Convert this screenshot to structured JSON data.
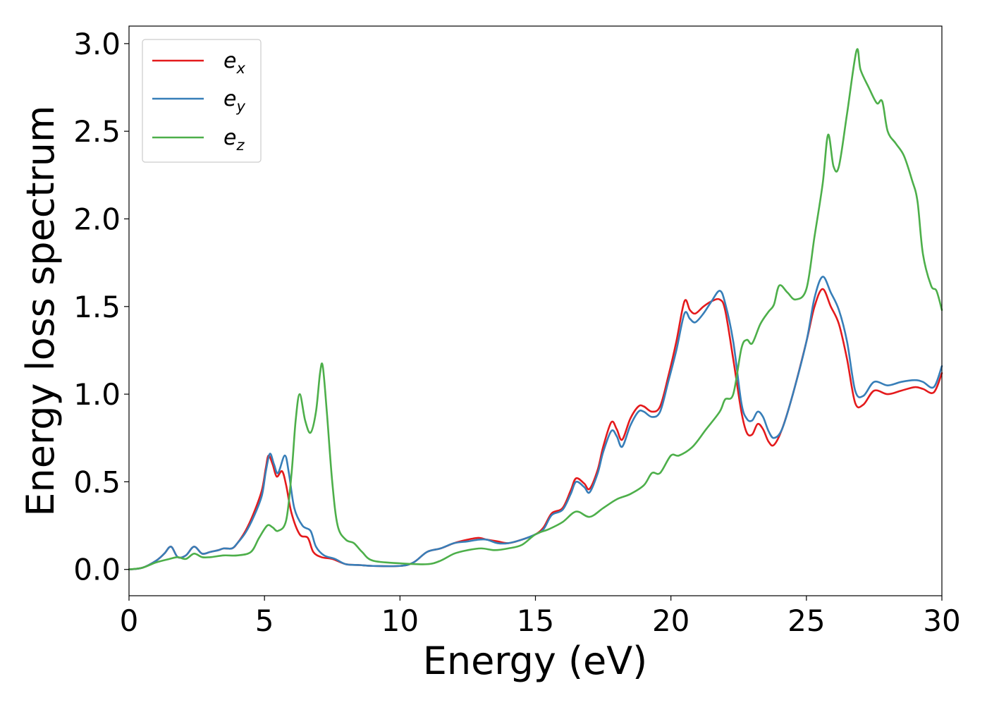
{
  "chart_data": {
    "type": "line",
    "xlabel": "Energy (eV)",
    "ylabel": "Energy loss spectrum",
    "xlim": [
      0,
      30
    ],
    "ylim": [
      -0.15,
      3.1
    ],
    "xticks": [
      0,
      5,
      10,
      15,
      20,
      25,
      30
    ],
    "xtick_labels": [
      "0",
      "5",
      "10",
      "15",
      "20",
      "25",
      "30"
    ],
    "yticks": [
      0.0,
      0.5,
      1.0,
      1.5,
      2.0,
      2.5,
      3.0
    ],
    "ytick_labels": [
      "0.0",
      "0.5",
      "1.0",
      "1.5",
      "2.0",
      "2.5",
      "3.0"
    ],
    "grid": false,
    "legend_position": "top-left",
    "series": [
      {
        "name": "e_x",
        "legend_base": "e",
        "legend_sub": "x",
        "color": "#e41a1c",
        "points": [
          [
            0,
            0
          ],
          [
            0.5,
            0.01
          ],
          [
            1.0,
            0.05
          ],
          [
            1.3,
            0.09
          ],
          [
            1.55,
            0.13
          ],
          [
            1.8,
            0.07
          ],
          [
            2.1,
            0.08
          ],
          [
            2.4,
            0.13
          ],
          [
            2.7,
            0.09
          ],
          [
            3.0,
            0.1
          ],
          [
            3.3,
            0.11
          ],
          [
            3.5,
            0.12
          ],
          [
            3.8,
            0.12
          ],
          [
            4.0,
            0.15
          ],
          [
            4.3,
            0.22
          ],
          [
            4.6,
            0.32
          ],
          [
            4.9,
            0.45
          ],
          [
            5.05,
            0.58
          ],
          [
            5.15,
            0.65
          ],
          [
            5.3,
            0.6
          ],
          [
            5.45,
            0.53
          ],
          [
            5.65,
            0.56
          ],
          [
            5.8,
            0.48
          ],
          [
            6.0,
            0.32
          ],
          [
            6.3,
            0.2
          ],
          [
            6.6,
            0.18
          ],
          [
            6.8,
            0.1
          ],
          [
            7.1,
            0.07
          ],
          [
            7.5,
            0.06
          ],
          [
            8.0,
            0.03
          ],
          [
            8.5,
            0.025
          ],
          [
            9.0,
            0.02
          ],
          [
            10.0,
            0.02
          ],
          [
            10.5,
            0.04
          ],
          [
            11.0,
            0.1
          ],
          [
            11.5,
            0.12
          ],
          [
            12.0,
            0.15
          ],
          [
            12.5,
            0.17
          ],
          [
            12.9,
            0.18
          ],
          [
            13.2,
            0.17
          ],
          [
            13.6,
            0.16
          ],
          [
            14.0,
            0.15
          ],
          [
            14.5,
            0.17
          ],
          [
            15.0,
            0.2
          ],
          [
            15.3,
            0.24
          ],
          [
            15.6,
            0.32
          ],
          [
            16.0,
            0.35
          ],
          [
            16.3,
            0.45
          ],
          [
            16.5,
            0.52
          ],
          [
            16.8,
            0.49
          ],
          [
            17.0,
            0.46
          ],
          [
            17.3,
            0.57
          ],
          [
            17.5,
            0.7
          ],
          [
            17.8,
            0.84
          ],
          [
            18.0,
            0.8
          ],
          [
            18.2,
            0.74
          ],
          [
            18.5,
            0.86
          ],
          [
            18.8,
            0.93
          ],
          [
            19.0,
            0.93
          ],
          [
            19.3,
            0.9
          ],
          [
            19.6,
            0.93
          ],
          [
            19.9,
            1.1
          ],
          [
            20.2,
            1.3
          ],
          [
            20.5,
            1.53
          ],
          [
            20.7,
            1.48
          ],
          [
            20.9,
            1.46
          ],
          [
            21.2,
            1.5
          ],
          [
            21.5,
            1.53
          ],
          [
            21.8,
            1.54
          ],
          [
            22.0,
            1.48
          ],
          [
            22.3,
            1.2
          ],
          [
            22.6,
            0.9
          ],
          [
            22.8,
            0.78
          ],
          [
            23.0,
            0.77
          ],
          [
            23.2,
            0.83
          ],
          [
            23.4,
            0.8
          ],
          [
            23.6,
            0.73
          ],
          [
            23.8,
            0.71
          ],
          [
            24.1,
            0.8
          ],
          [
            24.5,
            1.0
          ],
          [
            25.0,
            1.3
          ],
          [
            25.3,
            1.5
          ],
          [
            25.6,
            1.6
          ],
          [
            25.9,
            1.5
          ],
          [
            26.2,
            1.4
          ],
          [
            26.5,
            1.2
          ],
          [
            26.8,
            0.95
          ],
          [
            27.1,
            0.94
          ],
          [
            27.5,
            1.02
          ],
          [
            28.0,
            1.0
          ],
          [
            28.5,
            1.02
          ],
          [
            29.0,
            1.04
          ],
          [
            29.3,
            1.03
          ],
          [
            29.7,
            1.01
          ],
          [
            30.0,
            1.12
          ]
        ]
      },
      {
        "name": "e_y",
        "legend_base": "e",
        "legend_sub": "y",
        "color": "#377eb8",
        "points": [
          [
            0,
            0
          ],
          [
            0.5,
            0.01
          ],
          [
            1.0,
            0.05
          ],
          [
            1.3,
            0.09
          ],
          [
            1.55,
            0.13
          ],
          [
            1.8,
            0.07
          ],
          [
            2.1,
            0.08
          ],
          [
            2.4,
            0.13
          ],
          [
            2.7,
            0.09
          ],
          [
            3.0,
            0.1
          ],
          [
            3.3,
            0.11
          ],
          [
            3.5,
            0.12
          ],
          [
            3.8,
            0.12
          ],
          [
            4.0,
            0.15
          ],
          [
            4.3,
            0.21
          ],
          [
            4.6,
            0.3
          ],
          [
            4.9,
            0.42
          ],
          [
            5.05,
            0.56
          ],
          [
            5.2,
            0.66
          ],
          [
            5.35,
            0.6
          ],
          [
            5.5,
            0.55
          ],
          [
            5.75,
            0.65
          ],
          [
            5.9,
            0.55
          ],
          [
            6.1,
            0.35
          ],
          [
            6.4,
            0.25
          ],
          [
            6.7,
            0.22
          ],
          [
            6.9,
            0.13
          ],
          [
            7.2,
            0.08
          ],
          [
            7.6,
            0.06
          ],
          [
            8.0,
            0.03
          ],
          [
            8.5,
            0.025
          ],
          [
            9.0,
            0.02
          ],
          [
            10.0,
            0.02
          ],
          [
            10.5,
            0.04
          ],
          [
            11.0,
            0.1
          ],
          [
            11.5,
            0.12
          ],
          [
            12.0,
            0.15
          ],
          [
            12.5,
            0.16
          ],
          [
            12.9,
            0.17
          ],
          [
            13.2,
            0.17
          ],
          [
            13.6,
            0.15
          ],
          [
            14.0,
            0.15
          ],
          [
            14.5,
            0.17
          ],
          [
            15.0,
            0.2
          ],
          [
            15.3,
            0.23
          ],
          [
            15.6,
            0.31
          ],
          [
            16.0,
            0.34
          ],
          [
            16.3,
            0.43
          ],
          [
            16.5,
            0.5
          ],
          [
            16.8,
            0.47
          ],
          [
            17.0,
            0.44
          ],
          [
            17.3,
            0.55
          ],
          [
            17.5,
            0.67
          ],
          [
            17.8,
            0.79
          ],
          [
            18.0,
            0.76
          ],
          [
            18.2,
            0.7
          ],
          [
            18.5,
            0.82
          ],
          [
            18.8,
            0.9
          ],
          [
            19.0,
            0.9
          ],
          [
            19.3,
            0.87
          ],
          [
            19.6,
            0.9
          ],
          [
            19.9,
            1.07
          ],
          [
            20.2,
            1.25
          ],
          [
            20.5,
            1.46
          ],
          [
            20.7,
            1.43
          ],
          [
            20.9,
            1.41
          ],
          [
            21.2,
            1.46
          ],
          [
            21.5,
            1.53
          ],
          [
            21.8,
            1.59
          ],
          [
            22.0,
            1.52
          ],
          [
            22.3,
            1.3
          ],
          [
            22.6,
            0.95
          ],
          [
            22.8,
            0.86
          ],
          [
            23.0,
            0.85
          ],
          [
            23.2,
            0.9
          ],
          [
            23.4,
            0.87
          ],
          [
            23.6,
            0.79
          ],
          [
            23.8,
            0.75
          ],
          [
            24.1,
            0.8
          ],
          [
            24.5,
            1.0
          ],
          [
            25.0,
            1.3
          ],
          [
            25.3,
            1.55
          ],
          [
            25.6,
            1.67
          ],
          [
            25.9,
            1.58
          ],
          [
            26.2,
            1.48
          ],
          [
            26.5,
            1.3
          ],
          [
            26.8,
            1.02
          ],
          [
            27.1,
            0.99
          ],
          [
            27.5,
            1.07
          ],
          [
            28.0,
            1.05
          ],
          [
            28.5,
            1.07
          ],
          [
            29.0,
            1.08
          ],
          [
            29.3,
            1.07
          ],
          [
            29.7,
            1.04
          ],
          [
            30.0,
            1.16
          ]
        ]
      },
      {
        "name": "e_z",
        "legend_base": "e",
        "legend_sub": "z",
        "color": "#4daf4a",
        "points": [
          [
            0,
            0
          ],
          [
            0.5,
            0.01
          ],
          [
            1.0,
            0.04
          ],
          [
            1.5,
            0.06
          ],
          [
            1.8,
            0.07
          ],
          [
            2.1,
            0.06
          ],
          [
            2.4,
            0.09
          ],
          [
            2.7,
            0.07
          ],
          [
            3.0,
            0.07
          ],
          [
            3.5,
            0.08
          ],
          [
            4.0,
            0.08
          ],
          [
            4.5,
            0.1
          ],
          [
            4.8,
            0.18
          ],
          [
            5.1,
            0.25
          ],
          [
            5.3,
            0.24
          ],
          [
            5.5,
            0.22
          ],
          [
            5.8,
            0.28
          ],
          [
            6.0,
            0.55
          ],
          [
            6.15,
            0.85
          ],
          [
            6.3,
            1.0
          ],
          [
            6.5,
            0.85
          ],
          [
            6.7,
            0.78
          ],
          [
            6.9,
            0.9
          ],
          [
            7.05,
            1.12
          ],
          [
            7.15,
            1.16
          ],
          [
            7.3,
            0.9
          ],
          [
            7.5,
            0.5
          ],
          [
            7.7,
            0.25
          ],
          [
            8.0,
            0.17
          ],
          [
            8.3,
            0.15
          ],
          [
            8.6,
            0.1
          ],
          [
            9.0,
            0.05
          ],
          [
            10.0,
            0.035
          ],
          [
            11.0,
            0.03
          ],
          [
            11.5,
            0.05
          ],
          [
            12.0,
            0.09
          ],
          [
            12.5,
            0.11
          ],
          [
            13.0,
            0.12
          ],
          [
            13.5,
            0.11
          ],
          [
            14.0,
            0.12
          ],
          [
            14.5,
            0.14
          ],
          [
            15.0,
            0.2
          ],
          [
            15.5,
            0.23
          ],
          [
            16.0,
            0.27
          ],
          [
            16.5,
            0.33
          ],
          [
            17.0,
            0.3
          ],
          [
            17.5,
            0.35
          ],
          [
            18.0,
            0.4
          ],
          [
            18.5,
            0.43
          ],
          [
            19.0,
            0.48
          ],
          [
            19.3,
            0.55
          ],
          [
            19.6,
            0.55
          ],
          [
            20.0,
            0.65
          ],
          [
            20.3,
            0.65
          ],
          [
            20.8,
            0.7
          ],
          [
            21.3,
            0.8
          ],
          [
            21.8,
            0.9
          ],
          [
            22.0,
            0.97
          ],
          [
            22.3,
            1.0
          ],
          [
            22.6,
            1.26
          ],
          [
            22.8,
            1.31
          ],
          [
            23.0,
            1.29
          ],
          [
            23.3,
            1.4
          ],
          [
            23.6,
            1.47
          ],
          [
            23.8,
            1.51
          ],
          [
            24.0,
            1.62
          ],
          [
            24.3,
            1.58
          ],
          [
            24.6,
            1.54
          ],
          [
            25.0,
            1.6
          ],
          [
            25.3,
            1.9
          ],
          [
            25.6,
            2.2
          ],
          [
            25.8,
            2.48
          ],
          [
            26.0,
            2.3
          ],
          [
            26.2,
            2.3
          ],
          [
            26.5,
            2.6
          ],
          [
            26.85,
            2.96
          ],
          [
            27.0,
            2.85
          ],
          [
            27.3,
            2.75
          ],
          [
            27.6,
            2.66
          ],
          [
            27.8,
            2.67
          ],
          [
            28.0,
            2.5
          ],
          [
            28.3,
            2.43
          ],
          [
            28.6,
            2.36
          ],
          [
            28.9,
            2.22
          ],
          [
            29.1,
            2.1
          ],
          [
            29.3,
            1.8
          ],
          [
            29.6,
            1.62
          ],
          [
            29.8,
            1.59
          ],
          [
            30.0,
            1.48
          ]
        ]
      }
    ]
  }
}
